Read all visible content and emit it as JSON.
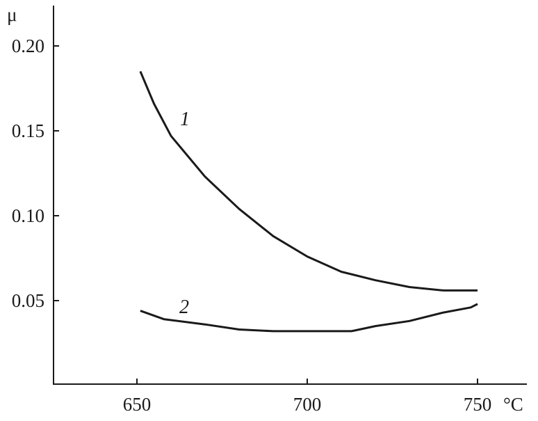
{
  "chart_data": {
    "type": "line",
    "title": "",
    "ylabel": "μ",
    "xlabel": "°C",
    "xlim": [
      626,
      766
    ],
    "ylim": [
      0,
      0.223
    ],
    "xticks": [
      650,
      700,
      750
    ],
    "xtick_labels": [
      "650",
      "700",
      "750"
    ],
    "yticks": [
      0.05,
      0.1,
      0.15,
      0.2
    ],
    "ytick_labels": [
      "0.05",
      "0.10",
      "0.15",
      "0.20"
    ],
    "grid": false,
    "line_color": "#1a1a1a",
    "series": [
      {
        "name": "1",
        "x": [
          651,
          655,
          660,
          670,
          680,
          690,
          700,
          710,
          720,
          730,
          740,
          750
        ],
        "y": [
          0.185,
          0.166,
          0.147,
          0.123,
          0.104,
          0.088,
          0.076,
          0.067,
          0.062,
          0.058,
          0.056,
          0.056
        ]
      },
      {
        "name": "2",
        "x": [
          651,
          658,
          670,
          680,
          690,
          700,
          713,
          720,
          730,
          740,
          748,
          750
        ],
        "y": [
          0.044,
          0.039,
          0.036,
          0.033,
          0.032,
          0.032,
          0.032,
          0.035,
          0.038,
          0.043,
          0.046,
          0.048
        ]
      }
    ]
  }
}
